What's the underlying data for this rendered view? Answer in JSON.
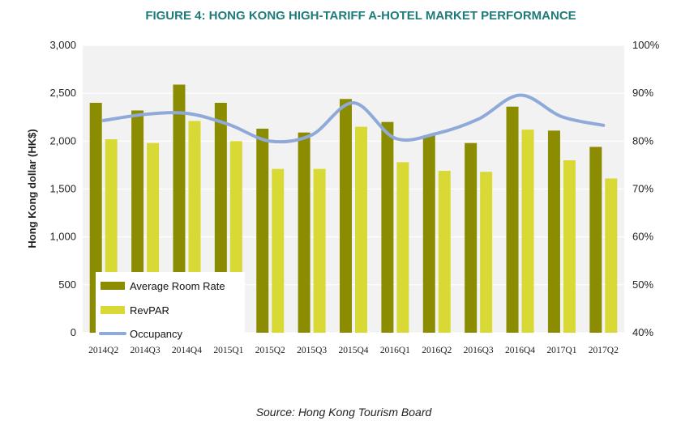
{
  "chart_data": {
    "type": "bar",
    "title": "FIGURE 4: HONG KONG HIGH-TARIFF A-HOTEL MARKET PERFORMANCE",
    "ylabel": "Hong Kong dollar (HK$)",
    "ylim": [
      0,
      3000
    ],
    "yticks": [
      "0",
      "500",
      "1,000",
      "1,500",
      "2,000",
      "2,500",
      "3,000"
    ],
    "y2lim": [
      40,
      100
    ],
    "y2ticks": [
      "40%",
      "50%",
      "60%",
      "70%",
      "80%",
      "90%",
      "100%"
    ],
    "categories": [
      "2014Q2",
      "2014Q3",
      "2014Q4",
      "2015Q1",
      "2015Q2",
      "2015Q3",
      "2015Q4",
      "2016Q1",
      "2016Q2",
      "2016Q3",
      "2016Q4",
      "2017Q1",
      "2017Q2"
    ],
    "series": [
      {
        "name": "Average Room Rate",
        "type": "bar",
        "axis": "left",
        "color": "#8c8c00",
        "values": [
          2400,
          2320,
          2590,
          2400,
          2130,
          2090,
          2440,
          2200,
          2060,
          1980,
          2360,
          2110,
          1940
        ]
      },
      {
        "name": "RevPAR",
        "type": "bar",
        "axis": "left",
        "color": "#d9d935",
        "values": [
          2020,
          1980,
          2210,
          2000,
          1710,
          1710,
          2150,
          1780,
          1690,
          1680,
          2120,
          1800,
          1610
        ]
      },
      {
        "name": "Occupancy",
        "type": "line",
        "axis": "right",
        "color": "#8fa9d9",
        "values": [
          84.3,
          85.6,
          85.8,
          83.5,
          80.0,
          81.3,
          88.0,
          80.6,
          81.6,
          84.6,
          89.6,
          85.1,
          83.3
        ]
      }
    ],
    "legend_position": "bottom-left",
    "grid": true,
    "source": "Source: Hong Kong Tourism Board"
  }
}
